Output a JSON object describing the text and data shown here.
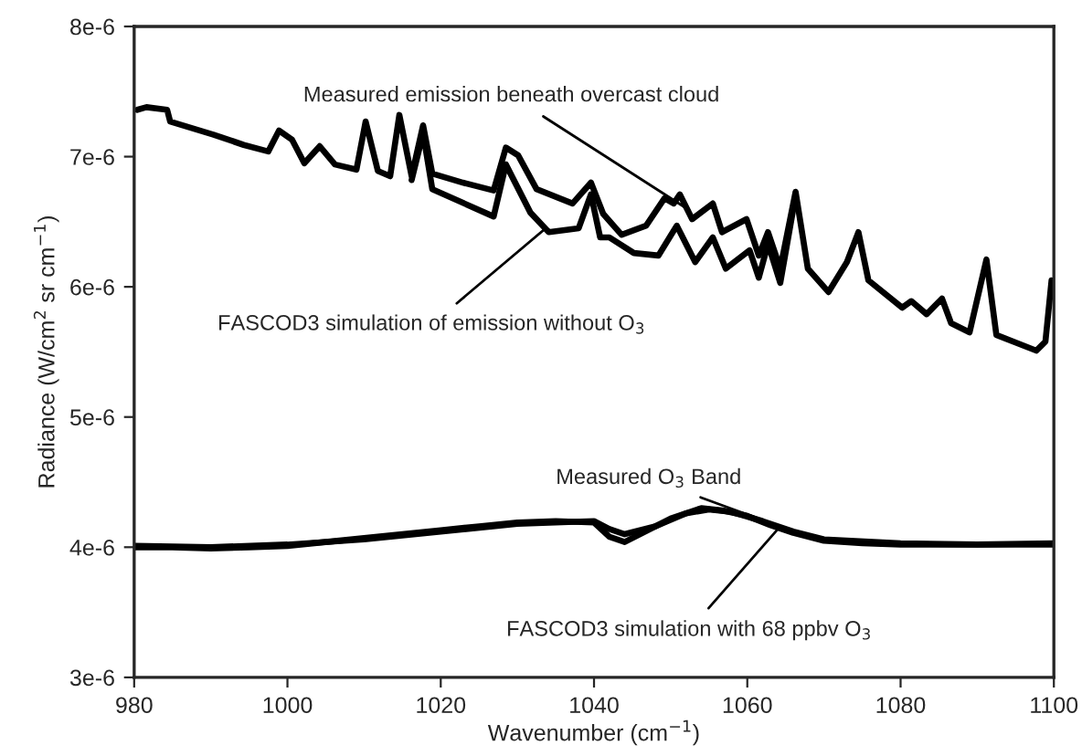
{
  "chart_data": {
    "type": "line",
    "xlabel": "Wavenumber (cm$^{−1}$)",
    "ylabel": "Radiance (W/cm$^{2}$ sr cm$^{−1}$)",
    "xlim": [
      980,
      1100
    ],
    "xticks": [
      980,
      1000,
      1020,
      1040,
      1060,
      1080,
      1100
    ],
    "ylim": [
      3e-06,
      8e-06
    ],
    "yticks": [
      {
        "value": 3e-06,
        "label": "3e-6"
      },
      {
        "value": 4e-06,
        "label": "4e-6"
      },
      {
        "value": 5e-06,
        "label": "5e-6"
      },
      {
        "value": 6e-06,
        "label": "6e-6"
      },
      {
        "value": 7e-06,
        "label": "7e-6"
      },
      {
        "value": 8e-06,
        "label": "8e-6"
      }
    ],
    "grid": false,
    "marker": "none",
    "line_style": "solid",
    "series": [
      {
        "color": "#000000",
        "x": [
          980.4,
          981.6,
          984.3,
          984.7,
          990.3,
          994.3,
          997.5,
          998.9,
          1000.6,
          1002.2,
          1004.2,
          1006.2,
          1009.0,
          1010.2,
          1011.8,
          1013.4,
          1014.6,
          1016.2,
          1017.7,
          1018.9,
          1022.9,
          1026.9,
          1028.5,
          1030.1,
          1032.5,
          1037.2,
          1039.6,
          1041.2,
          1043.6,
          1046.8,
          1049.2,
          1050.4,
          1051.2,
          1052.8,
          1055.5,
          1056.7,
          1059.9,
          1061.5,
          1062.7,
          1064.3,
          1066.3,
          1067.9,
          1070.6,
          1073.0,
          1074.5,
          1075.8,
          1080.2,
          1081.4,
          1083.4,
          1085.4,
          1086.6,
          1089.0,
          1091.2,
          1092.5,
          1097.7,
          1098.9,
          1099.7
        ],
        "values": [
          7.36e-06,
          7.38e-06,
          7.36e-06,
          7.27e-06,
          7.17e-06,
          7.09e-06,
          7.04e-06,
          7.2e-06,
          7.13e-06,
          6.95e-06,
          7.08e-06,
          6.94e-06,
          6.9e-06,
          7.27e-06,
          6.89e-06,
          6.85e-06,
          7.32e-06,
          6.85e-06,
          7.24e-06,
          6.87e-06,
          6.8e-06,
          6.74e-06,
          7.07e-06,
          7.01e-06,
          6.75e-06,
          6.64e-06,
          6.8e-06,
          6.56e-06,
          6.4e-06,
          6.47e-06,
          6.68e-06,
          6.64e-06,
          6.71e-06,
          6.52e-06,
          6.64e-06,
          6.42e-06,
          6.52e-06,
          6.24e-06,
          6.42e-06,
          6.14e-06,
          6.73e-06,
          6.14e-06,
          5.96e-06,
          6.19e-06,
          6.42e-06,
          6.05e-06,
          5.84e-06,
          5.89e-06,
          5.79e-06,
          5.91e-06,
          5.72e-06,
          5.65e-06,
          6.21e-06,
          5.63e-06,
          5.51e-06,
          5.58e-06,
          6.05e-06
        ]
      },
      {
        "color": "#000000",
        "x": [
          1016.2,
          1017.7,
          1018.9,
          1026.9,
          1028.5,
          1031.7,
          1034.1,
          1038.0,
          1039.6,
          1040.8,
          1042.0,
          1045.2,
          1048.4,
          1050.8,
          1053.2,
          1055.5,
          1057.2,
          1060.3,
          1061.5,
          1062.7,
          1064.3,
          1066.3
        ],
        "values": [
          6.82e-06,
          7.18e-06,
          6.75e-06,
          6.54e-06,
          6.94e-06,
          6.57e-06,
          6.42e-06,
          6.45e-06,
          6.71e-06,
          6.38e-06,
          6.38e-06,
          6.26e-06,
          6.24e-06,
          6.47e-06,
          6.19e-06,
          6.38e-06,
          6.14e-06,
          6.28e-06,
          6.07e-06,
          6.33e-06,
          6.03e-06,
          6.7e-06
        ]
      },
      {
        "color": "#000000",
        "x": [
          980,
          985,
          990,
          995,
          1000,
          1005,
          1010,
          1015,
          1020,
          1025,
          1030,
          1035,
          1040,
          1042,
          1044,
          1046,
          1050,
          1054,
          1057,
          1060,
          1063,
          1066,
          1070,
          1075,
          1080,
          1090,
          1100
        ],
        "values": [
          4e-06,
          4e-06,
          3.99e-06,
          4e-06,
          4.01e-06,
          4.04e-06,
          4.07e-06,
          4.1e-06,
          4.13e-06,
          4.16e-06,
          4.19e-06,
          4.2e-06,
          4.19e-06,
          4.08e-06,
          4.04e-06,
          4.1e-06,
          4.22e-06,
          4.3e-06,
          4.28e-06,
          4.24e-06,
          4.17e-06,
          4.11e-06,
          4.05e-06,
          4.03e-06,
          4.02e-06,
          4.02e-06,
          4.03e-06
        ]
      },
      {
        "color": "#000000",
        "x": [
          980,
          990,
          1000,
          1010,
          1020,
          1030,
          1040,
          1042,
          1044,
          1048,
          1052,
          1055,
          1058,
          1062,
          1066,
          1070,
          1080,
          1090,
          1100
        ],
        "values": [
          4.01e-06,
          4e-06,
          4.02e-06,
          4.06e-06,
          4.12e-06,
          4.18e-06,
          4.2e-06,
          4.14e-06,
          4.1e-06,
          4.16e-06,
          4.26e-06,
          4.29e-06,
          4.27e-06,
          4.2e-06,
          4.12e-06,
          4.06e-06,
          4.03e-06,
          4.02e-06,
          4.02e-06
        ]
      }
    ],
    "annotations": [
      {
        "text": "Measured emission beneath overcast cloud",
        "x": 1052.4,
        "y": 6.59e-06
      },
      {
        "text": "FASCOD3 simulation of emission without O$_{3}$",
        "x": 1033.7,
        "y": 6.45e-06
      },
      {
        "text": "Measured O$_{3}$ Band",
        "x": 1067,
        "y": 4.1e-06
      },
      {
        "text": "FASCOD3 simulation with 68 ppbv O$_{3}$",
        "x": 1064,
        "y": 4.14e-06
      }
    ]
  }
}
